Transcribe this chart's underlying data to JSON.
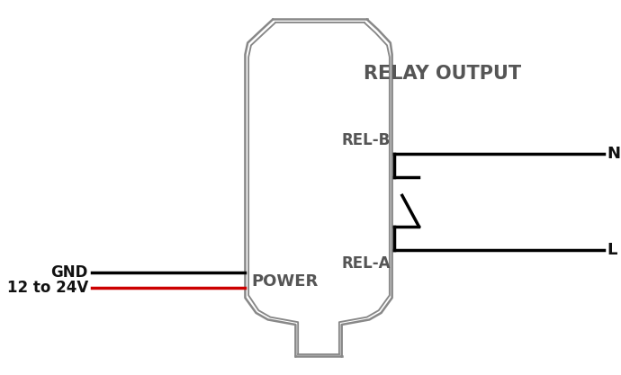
{
  "bg_color": "#ffffff",
  "connector_color": "#888888",
  "connector_color2": "#aaaaaa",
  "relay_output_label": "RELAY OUTPUT",
  "power_label": "POWER",
  "gnd_label": "GND",
  "voltage_label": "12 to 24V",
  "rel_a_label": "REL-A",
  "rel_b_label": "REL-B",
  "n_label": "N",
  "l_label": "L",
  "label_color": "#555555",
  "relay_wire_color": "#000000",
  "gnd_wire_color": "#000000",
  "voltage_wire_color": "#cc0000",
  "connector_lw": 1.8,
  "wire_lw": 2.5,
  "title_fontsize": 15,
  "label_fontsize": 12,
  "nl_fontsize": 13
}
